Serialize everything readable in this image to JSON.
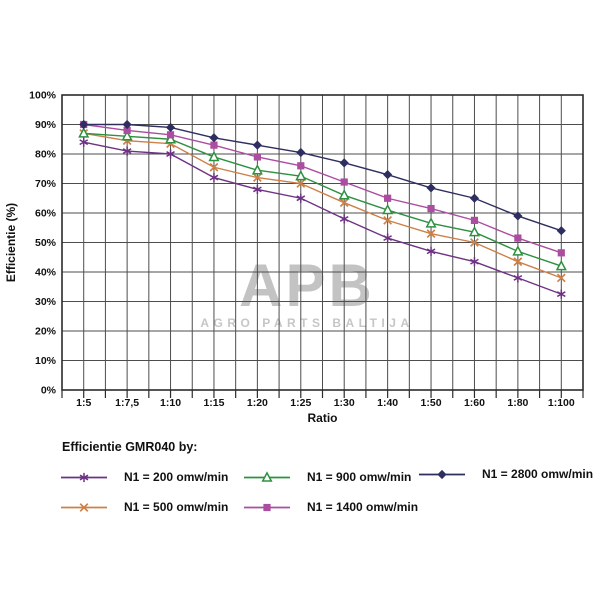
{
  "watermark": {
    "logo": "APB",
    "tagline": "AGRO PARTS BALTIJA"
  },
  "chart_data": {
    "type": "line",
    "title": "Efficientie GMR040 by:",
    "xlabel": "Ratio",
    "ylabel": "Efficientie (%)",
    "ylim": [
      0,
      100
    ],
    "y_tick_step": 10,
    "y_tick_labels": [
      "0%",
      "10%",
      "20%",
      "30%",
      "40%",
      "50%",
      "60%",
      "70%",
      "80%",
      "90%",
      "100%"
    ],
    "grid": true,
    "legend_position": "bottom-left",
    "categories": [
      "1:5",
      "1:7,5",
      "1:10",
      "1:15",
      "1:20",
      "1:25",
      "1:30",
      "1:40",
      "1:50",
      "1:60",
      "1:80",
      "1:100"
    ],
    "series": [
      {
        "name": "N1 = 200 omw/min",
        "marker": "asterisk",
        "color": "#6e3284",
        "values": [
          84,
          81,
          80,
          72,
          68,
          65,
          58,
          51.5,
          47,
          43.5,
          38,
          32.5
        ]
      },
      {
        "name": "N1 = 500 omw/min",
        "marker": "x",
        "color": "#cd8047",
        "values": [
          87,
          84.5,
          83.5,
          75.5,
          72,
          70,
          63.5,
          57.5,
          53,
          50,
          43.5,
          38
        ]
      },
      {
        "name": "N1 = 900 omw/min",
        "marker": "triangle-open",
        "color": "#2e9040",
        "values": [
          87,
          86,
          85,
          79,
          74.5,
          72.5,
          66,
          61,
          56.5,
          53.5,
          47,
          42
        ]
      },
      {
        "name": "N1 = 1400 omw/min",
        "marker": "square",
        "color": "#ab4da0",
        "values": [
          90,
          88,
          86.5,
          83,
          79,
          76,
          70.5,
          65,
          61.5,
          57.5,
          51.5,
          46.5
        ]
      },
      {
        "name": "N1 = 2800 omw/min",
        "marker": "diamond",
        "color": "#2e2e60",
        "values": [
          90,
          90,
          89,
          85.5,
          83,
          80.5,
          77,
          73,
          68.5,
          65,
          59,
          54
        ]
      }
    ],
    "legend_order": [
      0,
      2,
      4,
      1,
      3
    ]
  }
}
